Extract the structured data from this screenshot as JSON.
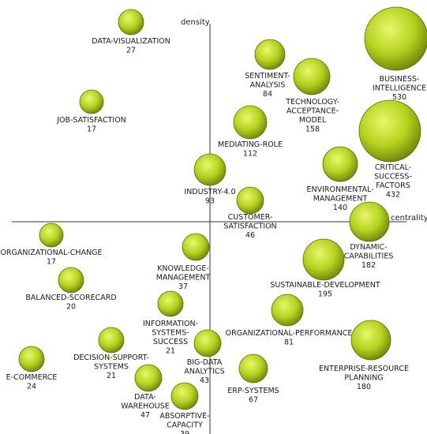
{
  "axes": {
    "x_label": "centrality",
    "y_label": "density"
  },
  "colors": {
    "bubble_highlight": "#e8f86a",
    "bubble_mid": "#b5d21f",
    "bubble_dark": "#5b6e05",
    "axis": "#333333"
  },
  "themes": [
    {
      "id": "data-visualization",
      "lines": [
        "DATA-VISUALIZATION"
      ],
      "count": "27"
    },
    {
      "id": "job-satisfaction",
      "lines": [
        "JOB-SATISFACTION"
      ],
      "count": "17"
    },
    {
      "id": "sentiment-analysis",
      "lines": [
        "SENTIMENT-",
        "ANALYSIS"
      ],
      "count": "84"
    },
    {
      "id": "technology-acceptance-model",
      "lines": [
        "TECHNOLOGY-",
        "ACCEPTANCE-",
        "MODEL"
      ],
      "count": "158"
    },
    {
      "id": "business-intelligence",
      "lines": [
        "BUSINESS-",
        "INTELLIGENCE"
      ],
      "count": "530"
    },
    {
      "id": "mediating-role",
      "lines": [
        "MEDIATING-ROLE"
      ],
      "count": "112"
    },
    {
      "id": "critical-success-factors",
      "lines": [
        "CRITICAL-",
        "SUCCESS-",
        "FACTORS"
      ],
      "count": "432"
    },
    {
      "id": "industry-4-0",
      "lines": [
        "INDUSTRY-4.0"
      ],
      "count": "93"
    },
    {
      "id": "environmental-management",
      "lines": [
        "ENVIRONMENTAL-",
        "MANAGEMENT"
      ],
      "count": "140"
    },
    {
      "id": "customer-satisfaction",
      "lines": [
        "CUSTOMER-",
        "SATISFACTION"
      ],
      "count": "46"
    },
    {
      "id": "dynamic-capabilities",
      "lines": [
        "DYNAMIC-",
        "CAPABILITIES"
      ],
      "count": "182"
    },
    {
      "id": "organizational-change",
      "lines": [
        "ORGANIZATIONAL-CHANGE"
      ],
      "count": "17"
    },
    {
      "id": "knowledge-management",
      "lines": [
        "KNOWLEDGE-",
        "MANAGEMENT"
      ],
      "count": "37"
    },
    {
      "id": "sustainable-development",
      "lines": [
        "SUSTAINABLE-DEVELOPMENT"
      ],
      "count": "195"
    },
    {
      "id": "balanced-scorecard",
      "lines": [
        "BALANCED-SCORECARD"
      ],
      "count": "20"
    },
    {
      "id": "information-systems-success",
      "lines": [
        "INFORMATION-",
        "SYSTEMS-",
        "SUCCESS"
      ],
      "count": "21"
    },
    {
      "id": "organizational-performance",
      "lines": [
        "ORGANIZATIONAL-PERFORMANCE"
      ],
      "count": "81"
    },
    {
      "id": "enterprise-resource-planning",
      "lines": [
        "ENTERPRISE-RESOURCE",
        "PLANNING"
      ],
      "count": "180"
    },
    {
      "id": "decision-support-systems",
      "lines": [
        "DECISION-SUPPORT-",
        "SYSTEMS"
      ],
      "count": "21"
    },
    {
      "id": "big-data-analytics",
      "lines": [
        "BIG-DATA",
        "ANALYTICS"
      ],
      "count": "43"
    },
    {
      "id": "e-commerce",
      "lines": [
        "E-COMMERCE"
      ],
      "count": "24"
    },
    {
      "id": "erp-systems",
      "lines": [
        "ERP-SYSTEMS"
      ],
      "count": "67"
    },
    {
      "id": "data-warehouse",
      "lines": [
        "DATA-",
        "WAREHOUSE"
      ],
      "count": "47"
    },
    {
      "id": "absorptive-capacity",
      "lines": [
        "ABSORPTIVE-",
        "CAPACITY"
      ],
      "count": "39"
    }
  ]
}
